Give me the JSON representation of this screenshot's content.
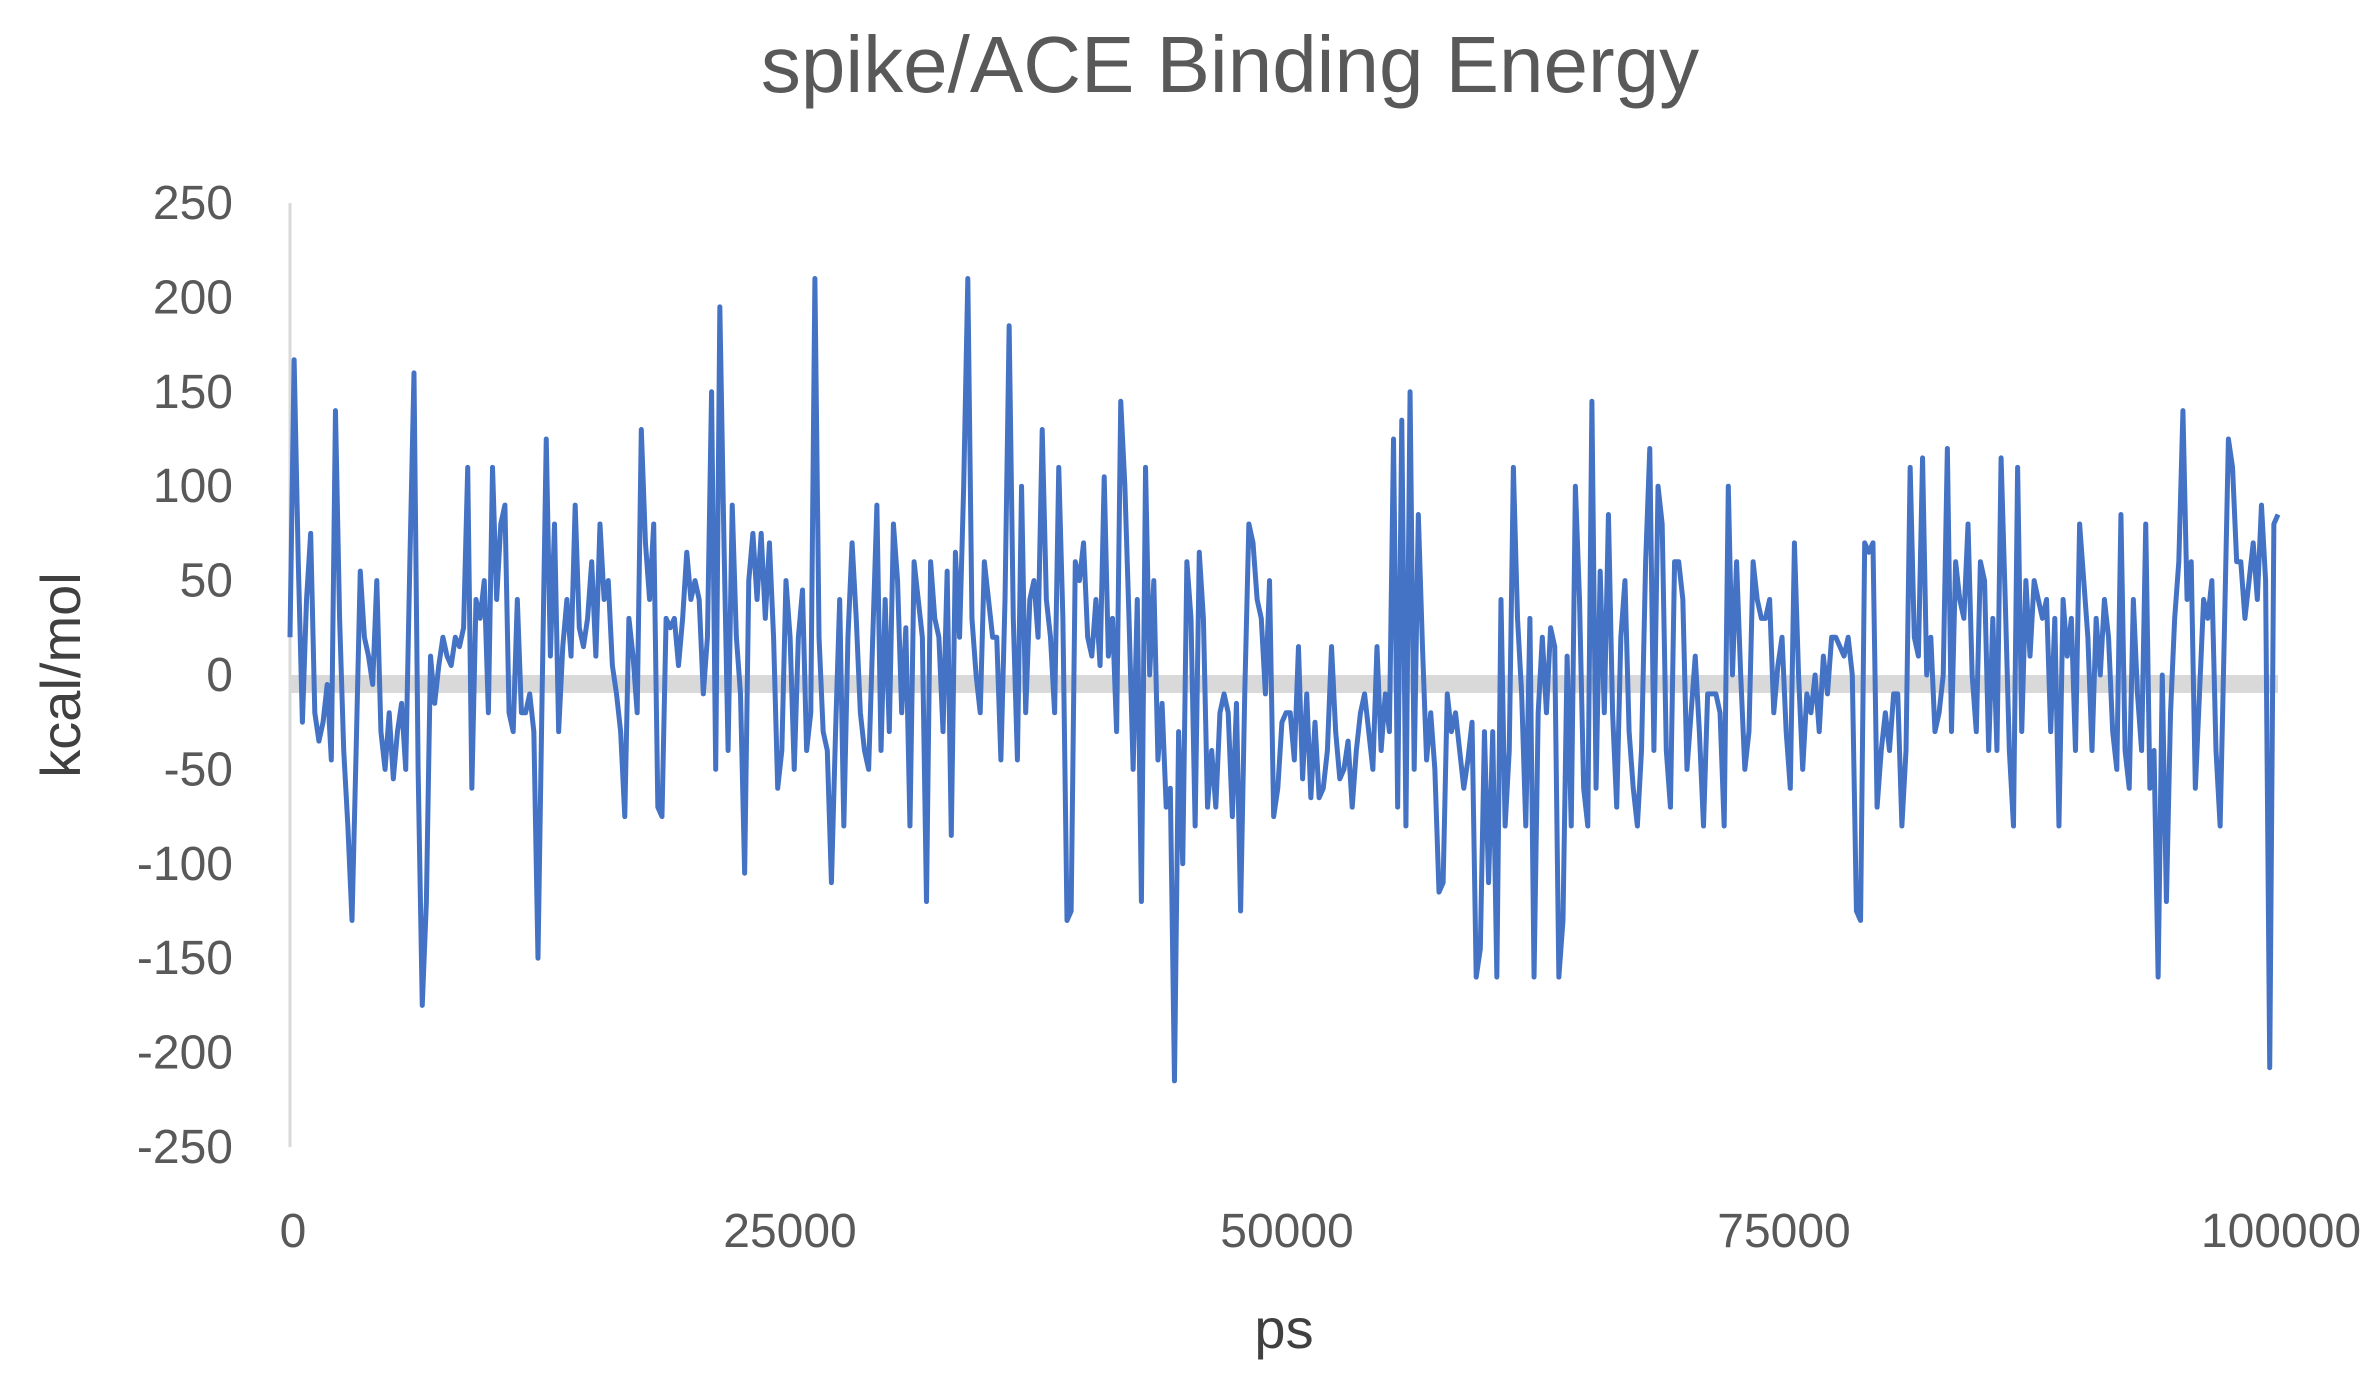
{
  "chart_data": {
    "type": "line",
    "title": "spike/ACE Binding Energy",
    "xlabel": "ps",
    "ylabel": "kcal/mol",
    "xlim": [
      0,
      100000
    ],
    "ylim": [
      -250,
      250
    ],
    "x_ticks": [
      "0",
      "25000",
      "50000",
      "75000",
      "100000"
    ],
    "y_ticks": [
      "250",
      "200",
      "150",
      "100",
      "50",
      "0",
      "-50",
      "-100",
      "-150",
      "-200",
      "-250"
    ],
    "grid": false,
    "legend": "none",
    "series": [
      {
        "color": "#4472c4",
        "x_start": 0,
        "x_step": 200,
        "values": [
          20,
          167,
          60,
          -25,
          40,
          75,
          -20,
          -35,
          -25,
          -5,
          -45,
          140,
          30,
          -40,
          -80,
          -130,
          -40,
          55,
          20,
          10,
          -5,
          50,
          -30,
          -50,
          -20,
          -55,
          -30,
          -15,
          -50,
          60,
          160,
          -50,
          -175,
          -120,
          10,
          -15,
          5,
          20,
          10,
          5,
          20,
          15,
          25,
          110,
          -60,
          40,
          30,
          50,
          -20,
          110,
          40,
          80,
          90,
          -20,
          -30,
          40,
          -20,
          -20,
          -10,
          -30,
          -150,
          -10,
          125,
          10,
          80,
          -30,
          15,
          40,
          10,
          90,
          25,
          15,
          30,
          60,
          10,
          80,
          40,
          50,
          5,
          -10,
          -30,
          -75,
          30,
          10,
          -20,
          130,
          70,
          40,
          80,
          -70,
          -75,
          30,
          25,
          30,
          5,
          30,
          65,
          40,
          50,
          40,
          -10,
          20,
          150,
          -50,
          195,
          70,
          -40,
          90,
          20,
          -10,
          -105,
          50,
          75,
          40,
          75,
          30,
          70,
          20,
          -60,
          -40,
          50,
          20,
          -50,
          20,
          45,
          -40,
          -20,
          210,
          20,
          -30,
          -40,
          -110,
          -30,
          40,
          -80,
          20,
          70,
          30,
          -20,
          -40,
          -50,
          20,
          90,
          -40,
          40,
          -30,
          80,
          50,
          -20,
          25,
          -80,
          60,
          40,
          20,
          -120,
          60,
          30,
          20,
          -30,
          55,
          -85,
          65,
          20,
          100,
          210,
          30,
          0,
          -20,
          60,
          40,
          20,
          20,
          -45,
          40,
          185,
          30,
          -45,
          100,
          -20,
          40,
          50,
          20,
          130,
          40,
          20,
          -20,
          110,
          30,
          -130,
          -125,
          60,
          50,
          70,
          20,
          10,
          40,
          5,
          105,
          10,
          30,
          -30,
          145,
          100,
          30,
          -50,
          40,
          -120,
          110,
          0,
          50,
          -45,
          -15,
          -70,
          -60,
          -215,
          -30,
          -100,
          60,
          30,
          -80,
          65,
          30,
          -70,
          -40,
          -70,
          -20,
          -10,
          -20,
          -75,
          -15,
          -125,
          -10,
          80,
          70,
          40,
          30,
          -10,
          50,
          -75,
          -60,
          -25,
          -20,
          -20,
          -45,
          15,
          -55,
          -10,
          -65,
          -25,
          -65,
          -60,
          -40,
          15,
          -30,
          -55,
          -50,
          -35,
          -70,
          -40,
          -20,
          -10,
          -30,
          -50,
          15,
          -40,
          -10,
          -30,
          125,
          -70,
          135,
          -80,
          150,
          -50,
          85,
          15,
          -45,
          -20,
          -50,
          -115,
          -110,
          -10,
          -30,
          -20,
          -40,
          -60,
          -45,
          -25,
          -160,
          -145,
          -30,
          -110,
          -30,
          -160,
          40,
          -80,
          -40,
          110,
          30,
          -10,
          -80,
          30,
          -160,
          -20,
          20,
          -20,
          25,
          15,
          -160,
          -130,
          10,
          -80,
          100,
          40,
          -60,
          -80,
          145,
          -60,
          55,
          -20,
          85,
          -20,
          -70,
          20,
          50,
          -30,
          -60,
          -80,
          -40,
          60,
          120,
          -40,
          100,
          80,
          -40,
          -70,
          60,
          60,
          40,
          -50,
          -20,
          10,
          -30,
          -80,
          -10,
          -10,
          -10,
          -20,
          -80,
          100,
          0,
          60,
          0,
          -50,
          -30,
          60,
          40,
          30,
          30,
          40,
          -20,
          5,
          20,
          -30,
          -60,
          70,
          0,
          -50,
          -10,
          -20,
          0,
          -30,
          10,
          -10,
          20,
          20,
          15,
          10,
          20,
          0,
          -125,
          -130,
          70,
          65,
          70,
          -70,
          -40,
          -20,
          -40,
          -10,
          -10,
          -80,
          -40,
          110,
          20,
          10,
          115,
          0,
          20,
          -30,
          -20,
          0,
          120,
          -30,
          60,
          40,
          30,
          80,
          0,
          -30,
          60,
          50,
          -40,
          30,
          -40,
          115,
          40,
          -40,
          -80,
          110,
          -30,
          50,
          10,
          50,
          40,
          30,
          40,
          -30,
          30,
          -80,
          40,
          10,
          30,
          -40,
          80,
          50,
          20,
          -40,
          30,
          0,
          40,
          20,
          -30,
          -50,
          85,
          -40,
          -60,
          40,
          -10,
          -40,
          80,
          -60,
          -40,
          -160,
          0,
          -120,
          -20,
          30,
          60,
          140,
          40,
          60,
          -60,
          -10,
          40,
          30,
          50,
          -40,
          -80,
          20,
          125,
          110,
          60,
          60,
          30,
          50,
          70,
          40,
          90,
          50,
          -208,
          80,
          85
        ]
      }
    ]
  }
}
